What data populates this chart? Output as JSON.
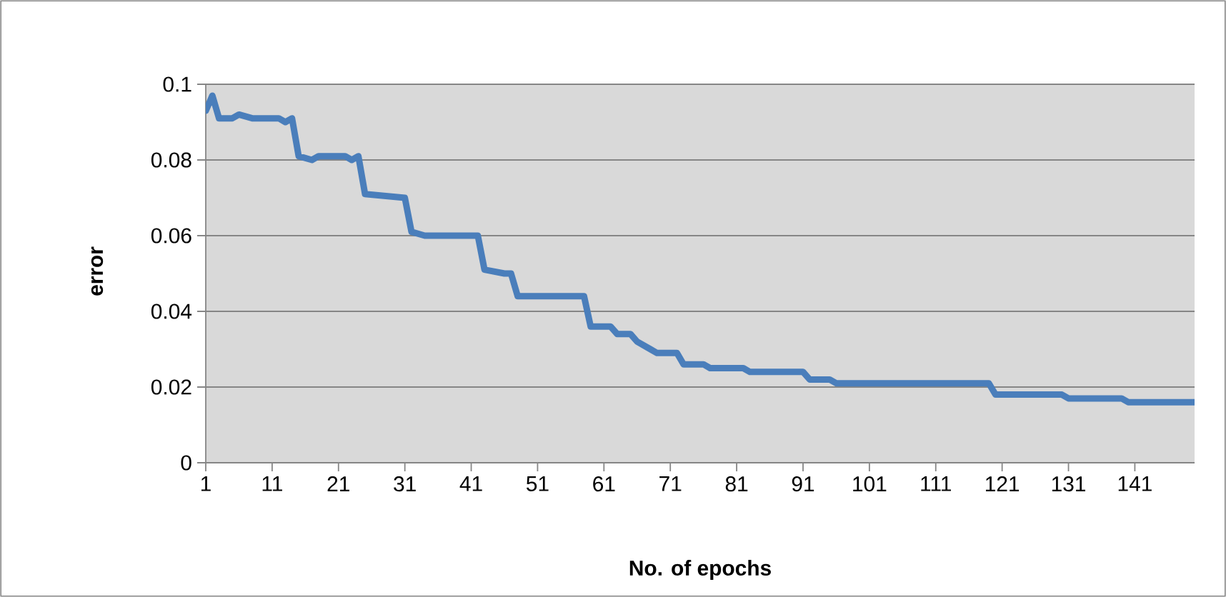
{
  "chart_data": {
    "type": "line",
    "xlabel": "No. of epochs",
    "ylabel": "error",
    "x": [
      1,
      2,
      3,
      5,
      6,
      8,
      12,
      13,
      14,
      15,
      17,
      18,
      22,
      23,
      24,
      25,
      31,
      32,
      34,
      42,
      43,
      46,
      47,
      48,
      50,
      58,
      59,
      62,
      63,
      65,
      66,
      68,
      69,
      72,
      73,
      74,
      76,
      77,
      82,
      83,
      91,
      92,
      95,
      96,
      102,
      119,
      120,
      130,
      131,
      139,
      140,
      147,
      148,
      150
    ],
    "series": [
      {
        "color": "#4a7ebb",
        "values": [
          0.093,
          0.097,
          0.091,
          0.091,
          0.092,
          0.091,
          0.091,
          0.09,
          0.091,
          0.081,
          0.08,
          0.081,
          0.081,
          0.08,
          0.081,
          0.071,
          0.07,
          0.061,
          0.06,
          0.06,
          0.051,
          0.05,
          0.05,
          0.044,
          0.044,
          0.044,
          0.036,
          0.036,
          0.034,
          0.034,
          0.032,
          0.03,
          0.029,
          0.029,
          0.026,
          0.026,
          0.026,
          0.025,
          0.025,
          0.024,
          0.024,
          0.022,
          0.022,
          0.021,
          0.021,
          0.021,
          0.018,
          0.018,
          0.017,
          0.017,
          0.016,
          0.016,
          0.016,
          0.016
        ]
      }
    ],
    "xlim": [
      1,
      150
    ],
    "xticks": [
      1,
      11,
      21,
      31,
      41,
      51,
      61,
      71,
      81,
      91,
      101,
      111,
      121,
      131,
      141
    ],
    "ylim": [
      0,
      0.1
    ],
    "yticks": [
      0,
      0.02,
      0.04,
      0.06,
      0.08,
      0.1
    ],
    "grid": "y",
    "marker": "none",
    "line_style": "solid"
  }
}
